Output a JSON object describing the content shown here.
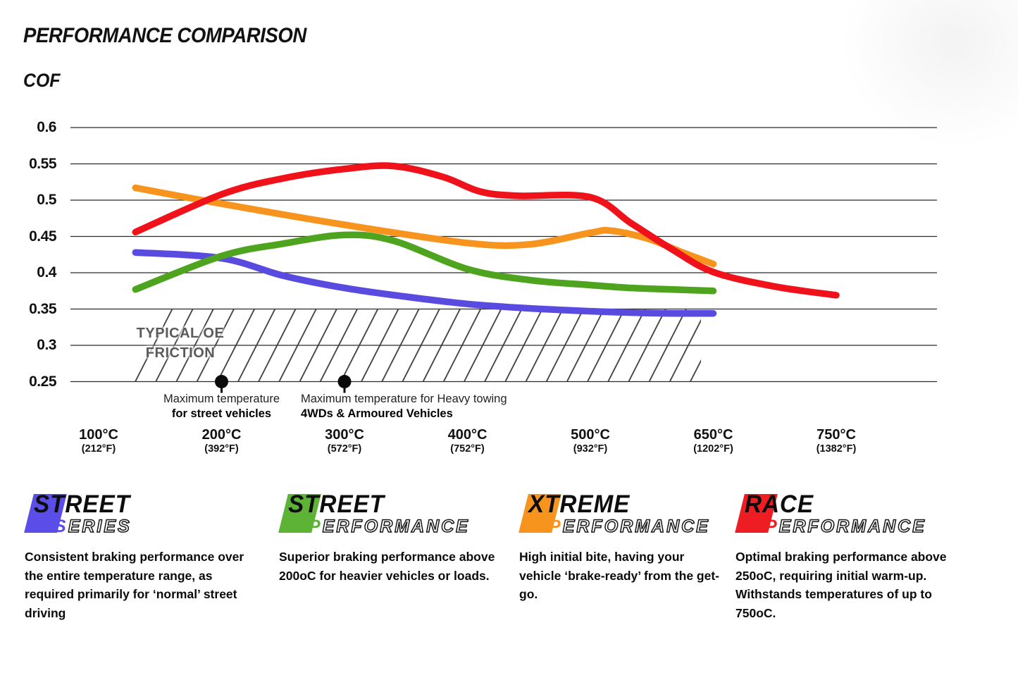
{
  "title": "PERFORMANCE COMPARISON",
  "y_axis_title": "COF",
  "chart_data": {
    "type": "line",
    "title": "PERFORMANCE COMPARISON",
    "ylabel": "COF",
    "ylim": [
      0.25,
      0.6
    ],
    "grid": true,
    "y_ticks": [
      0.6,
      0.55,
      0.5,
      0.45,
      0.4,
      0.35,
      0.3,
      0.25
    ],
    "y_tick_labels": [
      "0.6",
      "0.55",
      "0.5",
      "0.45",
      "0.4",
      "0.35",
      "0.3",
      "0.25"
    ],
    "x_categories": [
      100,
      200,
      300,
      400,
      500,
      650,
      750
    ],
    "x_tick_labels": [
      {
        "celsius": "100°C",
        "fahrenheit": "(212°F)"
      },
      {
        "celsius": "200°C",
        "fahrenheit": "(392°F)"
      },
      {
        "celsius": "300°C",
        "fahrenheit": "(572°F)"
      },
      {
        "celsius": "400°C",
        "fahrenheit": "(752°F)"
      },
      {
        "celsius": "500°C",
        "fahrenheit": "(932°F)"
      },
      {
        "celsius": "650°C",
        "fahrenheit": "(1202°F)"
      },
      {
        "celsius": "750°C",
        "fahrenheit": "(1382°F)"
      }
    ],
    "series": [
      {
        "name": "Street Series",
        "color": "#5a4be0",
        "points": [
          [
            130,
            0.428
          ],
          [
            200,
            0.42
          ],
          [
            250,
            0.396
          ],
          [
            300,
            0.379
          ],
          [
            350,
            0.367
          ],
          [
            400,
            0.357
          ],
          [
            450,
            0.351
          ],
          [
            500,
            0.347
          ],
          [
            550,
            0.345
          ],
          [
            600,
            0.344
          ],
          [
            650,
            0.344
          ]
        ]
      },
      {
        "name": "Street Performance",
        "color": "#4ea31f",
        "points": [
          [
            130,
            0.377
          ],
          [
            200,
            0.423
          ],
          [
            250,
            0.44
          ],
          [
            300,
            0.452
          ],
          [
            340,
            0.444
          ],
          [
            400,
            0.405
          ],
          [
            450,
            0.39
          ],
          [
            500,
            0.383
          ],
          [
            550,
            0.379
          ],
          [
            600,
            0.377
          ],
          [
            650,
            0.375
          ]
        ]
      },
      {
        "name": "Xtreme Performance",
        "color": "#f7941e",
        "points": [
          [
            130,
            0.517
          ],
          [
            200,
            0.495
          ],
          [
            300,
            0.466
          ],
          [
            400,
            0.441
          ],
          [
            450,
            0.439
          ],
          [
            500,
            0.455
          ],
          [
            525,
            0.458
          ],
          [
            570,
            0.447
          ],
          [
            610,
            0.429
          ],
          [
            650,
            0.412
          ]
        ]
      },
      {
        "name": "Race Performance",
        "color": "#f0121a",
        "points": [
          [
            130,
            0.456
          ],
          [
            200,
            0.508
          ],
          [
            250,
            0.53
          ],
          [
            300,
            0.543
          ],
          [
            340,
            0.547
          ],
          [
            380,
            0.532
          ],
          [
            410,
            0.512
          ],
          [
            440,
            0.506
          ],
          [
            500,
            0.504
          ],
          [
            550,
            0.468
          ],
          [
            600,
            0.432
          ],
          [
            650,
            0.401
          ],
          [
            700,
            0.381
          ],
          [
            750,
            0.369
          ]
        ]
      }
    ],
    "oe_band": {
      "label_lines": [
        "TYPICAL OE",
        "FRICTION"
      ],
      "cof_range": [
        0.25,
        0.35
      ]
    },
    "markers": [
      {
        "temp": 200,
        "lines": [
          "Maximum temperature",
          "for street vehicles"
        ]
      },
      {
        "temp": 300,
        "lines": [
          "Maximum temperature for Heavy towing",
          "4WDs & Armoured Vehicles"
        ]
      }
    ]
  },
  "legend": [
    {
      "brand_top": "STREET",
      "brand_bottom": "SERIES",
      "color": "#5b4ee8",
      "description": "Consistent braking performance over the entire temperature range, as required primarily for ‘normal’ street driving"
    },
    {
      "brand_top": "STREET",
      "brand_bottom": "PERFORMANCE",
      "color": "#5cb335",
      "description": "Superior braking performance above 200oC for heavier vehicles or loads."
    },
    {
      "brand_top": "XTREME",
      "brand_bottom": "PERFORMANCE",
      "color": "#f7941d",
      "description": "High initial bite, having your vehicle ‘brake-ready’ from the get-go."
    },
    {
      "brand_top": "RACE",
      "brand_bottom": "PERFORMANCE",
      "color": "#ee1c23",
      "description": "Optimal braking performance above 250oC, requiring initial warm-up. Withstands temperatures of up to 750oC."
    }
  ]
}
